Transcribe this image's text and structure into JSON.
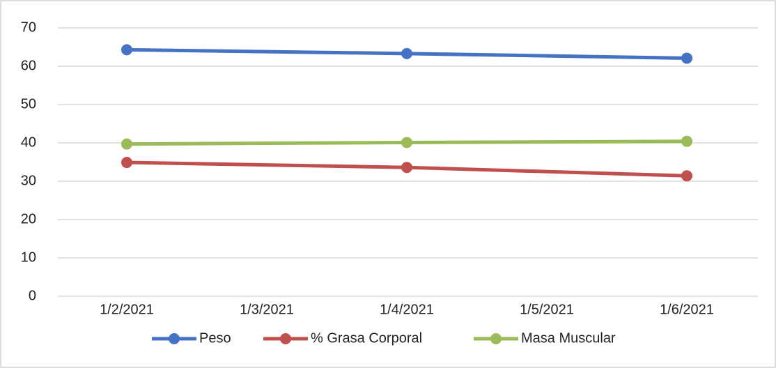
{
  "chart_data": {
    "type": "line",
    "x": [
      "1/2/2021",
      "1/4/2021",
      "1/6/2021"
    ],
    "xticks": [
      "1/2/2021",
      "1/3/2021",
      "1/4/2021",
      "1/5/2021",
      "1/6/2021"
    ],
    "series": [
      {
        "name": "Peso",
        "color": "#4472c4",
        "values": [
          64.3,
          63.3,
          62.1
        ]
      },
      {
        "name": "% Grasa Corporal",
        "color": "#c0504d",
        "values": [
          34.9,
          33.6,
          31.4
        ]
      },
      {
        "name": "Masa Muscular",
        "color": "#9bbb59",
        "values": [
          39.7,
          40.1,
          40.4
        ]
      }
    ],
    "ylim": [
      0,
      70
    ],
    "yticks": [
      0,
      10,
      20,
      30,
      40,
      50,
      60,
      70
    ],
    "grid": true,
    "legend": "bottom"
  }
}
